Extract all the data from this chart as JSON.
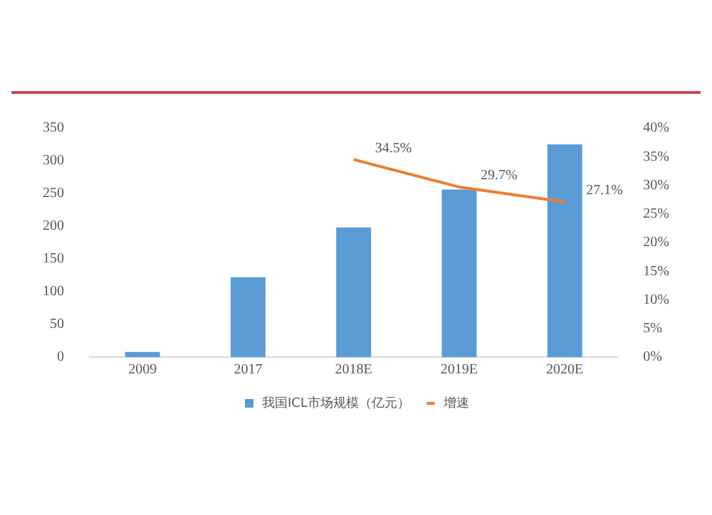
{
  "chart_data": {
    "type": "bar",
    "categories": [
      "2009",
      "2017",
      "2018E",
      "2019E",
      "2020E"
    ],
    "series": [
      {
        "name": "我国ICL市场规模（亿元）",
        "color": "#5b9bd5",
        "values": [
          8,
          122,
          198,
          256,
          325
        ]
      },
      {
        "name": "增速",
        "type": "line",
        "axis": "y2",
        "color": "#ed7d31",
        "values": [
          null,
          null,
          34.5,
          29.7,
          27.1
        ],
        "value_labels": [
          null,
          null,
          "34.5%",
          "29.7%",
          "27.1%"
        ]
      }
    ],
    "ylim": [
      0,
      350
    ],
    "yticks": [
      0,
      50,
      100,
      150,
      200,
      250,
      300,
      350
    ],
    "y2lim": [
      0,
      40
    ],
    "y2ticks": [
      {
        "value": 0,
        "label": "0%"
      },
      {
        "value": 5,
        "label": "5%"
      },
      {
        "value": 10,
        "label": "10%"
      },
      {
        "value": 15,
        "label": "15%"
      },
      {
        "value": 20,
        "label": "20%"
      },
      {
        "value": 25,
        "label": "25%"
      },
      {
        "value": 30,
        "label": "30%"
      },
      {
        "value": 35,
        "label": "35%"
      },
      {
        "value": 40,
        "label": "40%"
      }
    ],
    "grid": false,
    "legend": "bottom",
    "marker": "none",
    "line_style": "solid"
  }
}
